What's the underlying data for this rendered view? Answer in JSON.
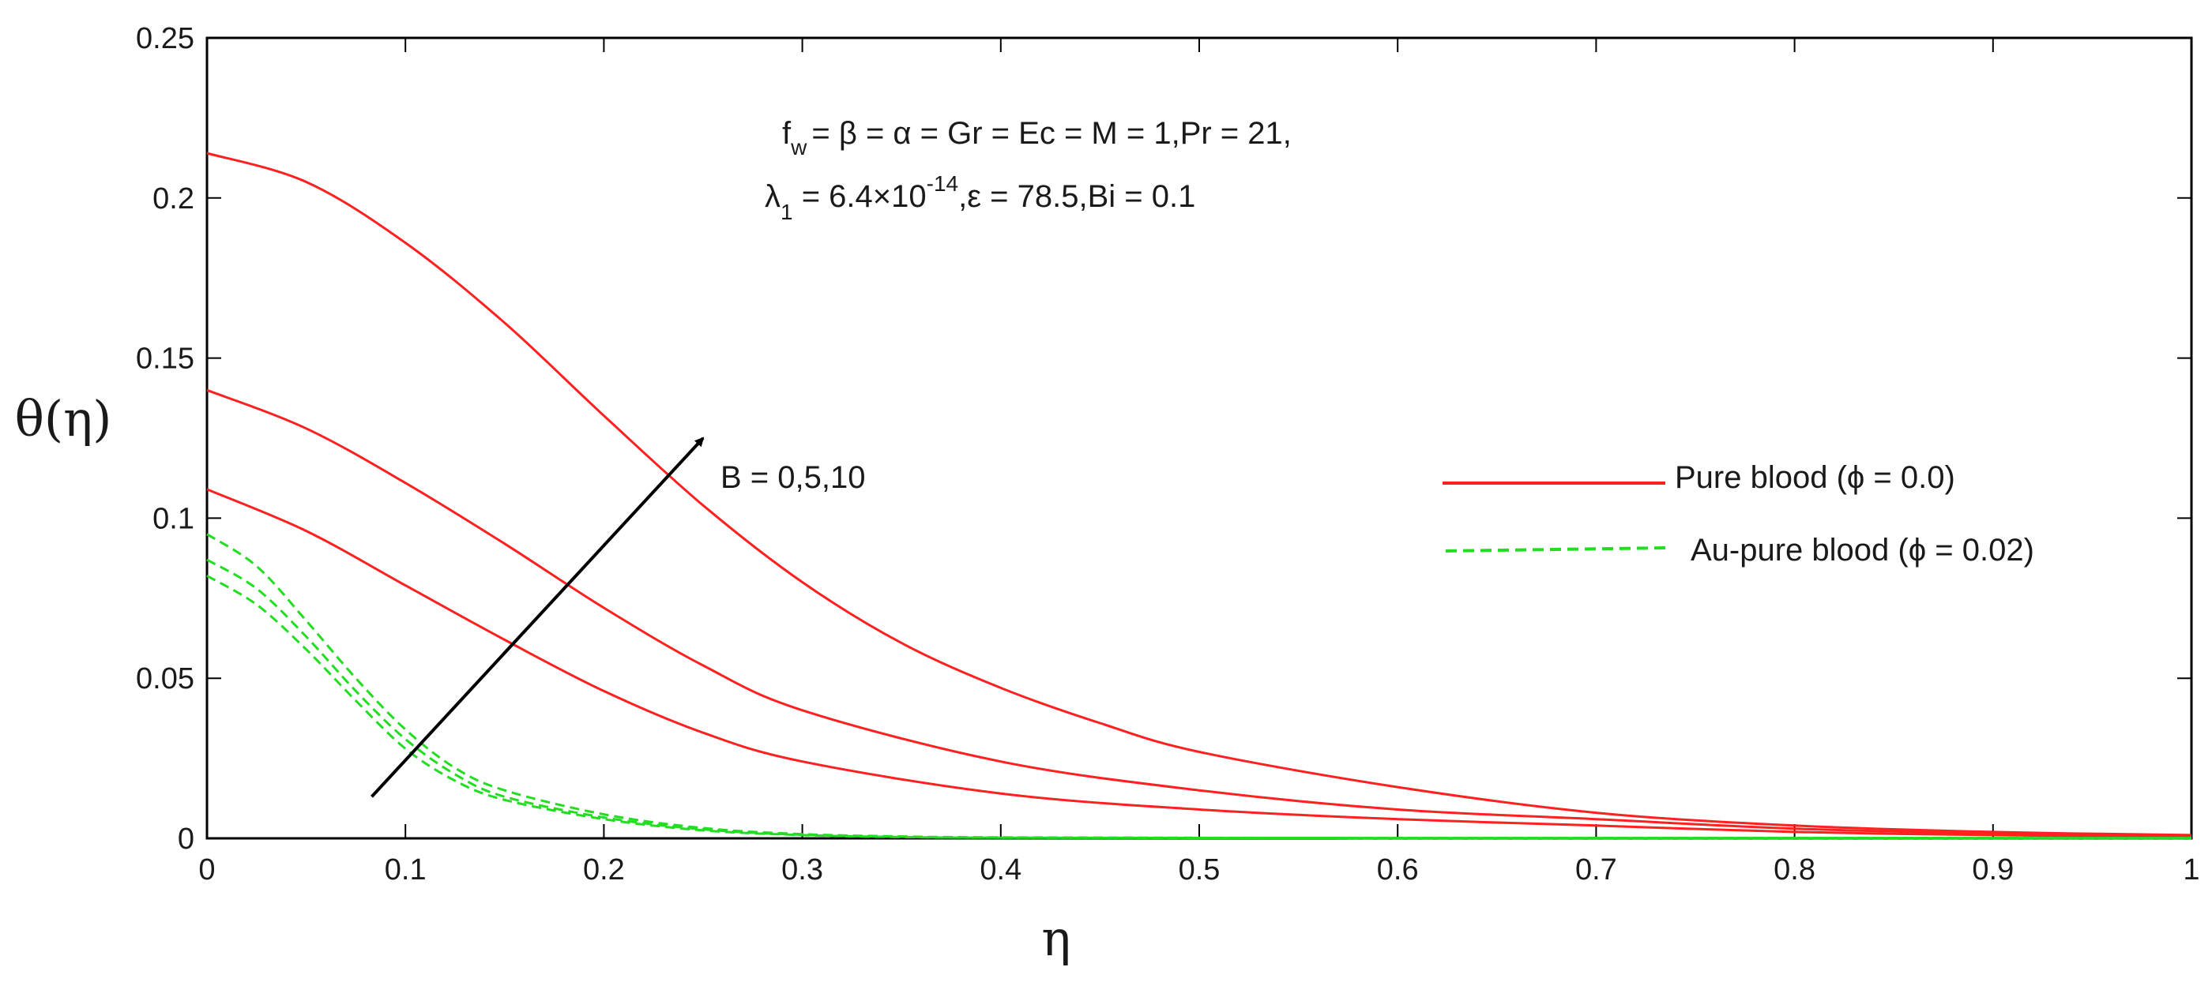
{
  "chart_data": {
    "type": "line",
    "xlabel": "η",
    "ylabel": "θ(η)",
    "xlim": [
      0,
      1
    ],
    "ylim": [
      0,
      0.25
    ],
    "xticks": [
      "0",
      "0.1",
      "0.2",
      "0.3",
      "0.4",
      "0.5",
      "0.6",
      "0.7",
      "0.8",
      "0.9",
      "1"
    ],
    "yticks": [
      "0",
      "0.05",
      "0.1",
      "0.15",
      "0.2",
      "0.25"
    ],
    "grid": false,
    "legend_position": "right",
    "colors": {
      "pure_blood": "#ff2020",
      "au_pure_blood": "#22dd22",
      "arrow": "#000000"
    },
    "annotation": {
      "line1": {
        "f": "f",
        "f_sub": "w",
        "rest": "= β = α = Gr = Ec = M = 1,Pr = 21,"
      },
      "line2": {
        "lambda": "λ",
        "lambda_sub": "1",
        "eq": " = 6.4×10",
        "exp": "-14",
        "rest": ",ε = 78.5,Bi = 0.1"
      }
    },
    "arrow_label": "B = 0,5,10",
    "arrow_from": [
      0.083,
      0.013
    ],
    "arrow_to": [
      0.25,
      0.125
    ],
    "legend": [
      {
        "label": "Pure blood (ϕ = 0.0)",
        "style": "solid",
        "color": "#ff2020"
      },
      {
        "label": "Au-pure blood (ϕ = 0.02)",
        "style": "dashed",
        "color": "#22dd22"
      }
    ],
    "series_groups": [
      {
        "group": "Pure blood",
        "style": "solid",
        "color": "#ff2020",
        "series": [
          {
            "x": [
              0,
              0.05,
              0.1,
              0.15,
              0.2,
              0.25,
              0.3,
              0.4,
              0.5,
              0.6,
              0.7,
              0.8,
              0.9,
              1.0
            ],
            "y": [
              0.109,
              0.096,
              0.079,
              0.062,
              0.046,
              0.033,
              0.024,
              0.014,
              0.009,
              0.006,
              0.004,
              0.002,
              0.001,
              0.0005
            ]
          },
          {
            "x": [
              0,
              0.05,
              0.1,
              0.15,
              0.2,
              0.25,
              0.3,
              0.4,
              0.5,
              0.6,
              0.7,
              0.8,
              0.9,
              1.0
            ],
            "y": [
              0.14,
              0.128,
              0.111,
              0.092,
              0.072,
              0.054,
              0.04,
              0.024,
              0.015,
              0.009,
              0.006,
              0.003,
              0.0015,
              0.0007
            ]
          },
          {
            "x": [
              0,
              0.05,
              0.1,
              0.15,
              0.2,
              0.25,
              0.3,
              0.35,
              0.4,
              0.45,
              0.5,
              0.6,
              0.7,
              0.8,
              0.9,
              1.0
            ],
            "y": [
              0.214,
              0.205,
              0.186,
              0.161,
              0.132,
              0.104,
              0.08,
              0.061,
              0.047,
              0.036,
              0.027,
              0.016,
              0.008,
              0.004,
              0.002,
              0.001
            ]
          }
        ]
      },
      {
        "group": "Au-pure blood",
        "style": "dashed",
        "color": "#22dd22",
        "series": [
          {
            "x": [
              0,
              0.025,
              0.05,
              0.075,
              0.1,
              0.125,
              0.15,
              0.2,
              0.25,
              0.3,
              0.35,
              0.4,
              0.6,
              0.8,
              1.0
            ],
            "y": [
              0.082,
              0.073,
              0.059,
              0.043,
              0.028,
              0.018,
              0.012,
              0.006,
              0.0025,
              0.001,
              0.0004,
              0.0002,
              0.0001,
              0.0001,
              0.0001
            ]
          },
          {
            "x": [
              0,
              0.025,
              0.05,
              0.075,
              0.1,
              0.125,
              0.15,
              0.2,
              0.25,
              0.3,
              0.35,
              0.4,
              0.6,
              0.8,
              1.0
            ],
            "y": [
              0.087,
              0.078,
              0.063,
              0.046,
              0.031,
              0.02,
              0.013,
              0.0065,
              0.0028,
              0.0011,
              0.0005,
              0.0002,
              0.0001,
              0.0001,
              0.0001
            ]
          },
          {
            "x": [
              0,
              0.025,
              0.05,
              0.075,
              0.1,
              0.125,
              0.15,
              0.2,
              0.25,
              0.3,
              0.35,
              0.4,
              0.6,
              0.8,
              1.0
            ],
            "y": [
              0.095,
              0.085,
              0.068,
              0.05,
              0.034,
              0.022,
              0.015,
              0.0075,
              0.0032,
              0.0013,
              0.0006,
              0.0003,
              0.0001,
              0.0001,
              0.0001
            ]
          }
        ]
      }
    ]
  }
}
